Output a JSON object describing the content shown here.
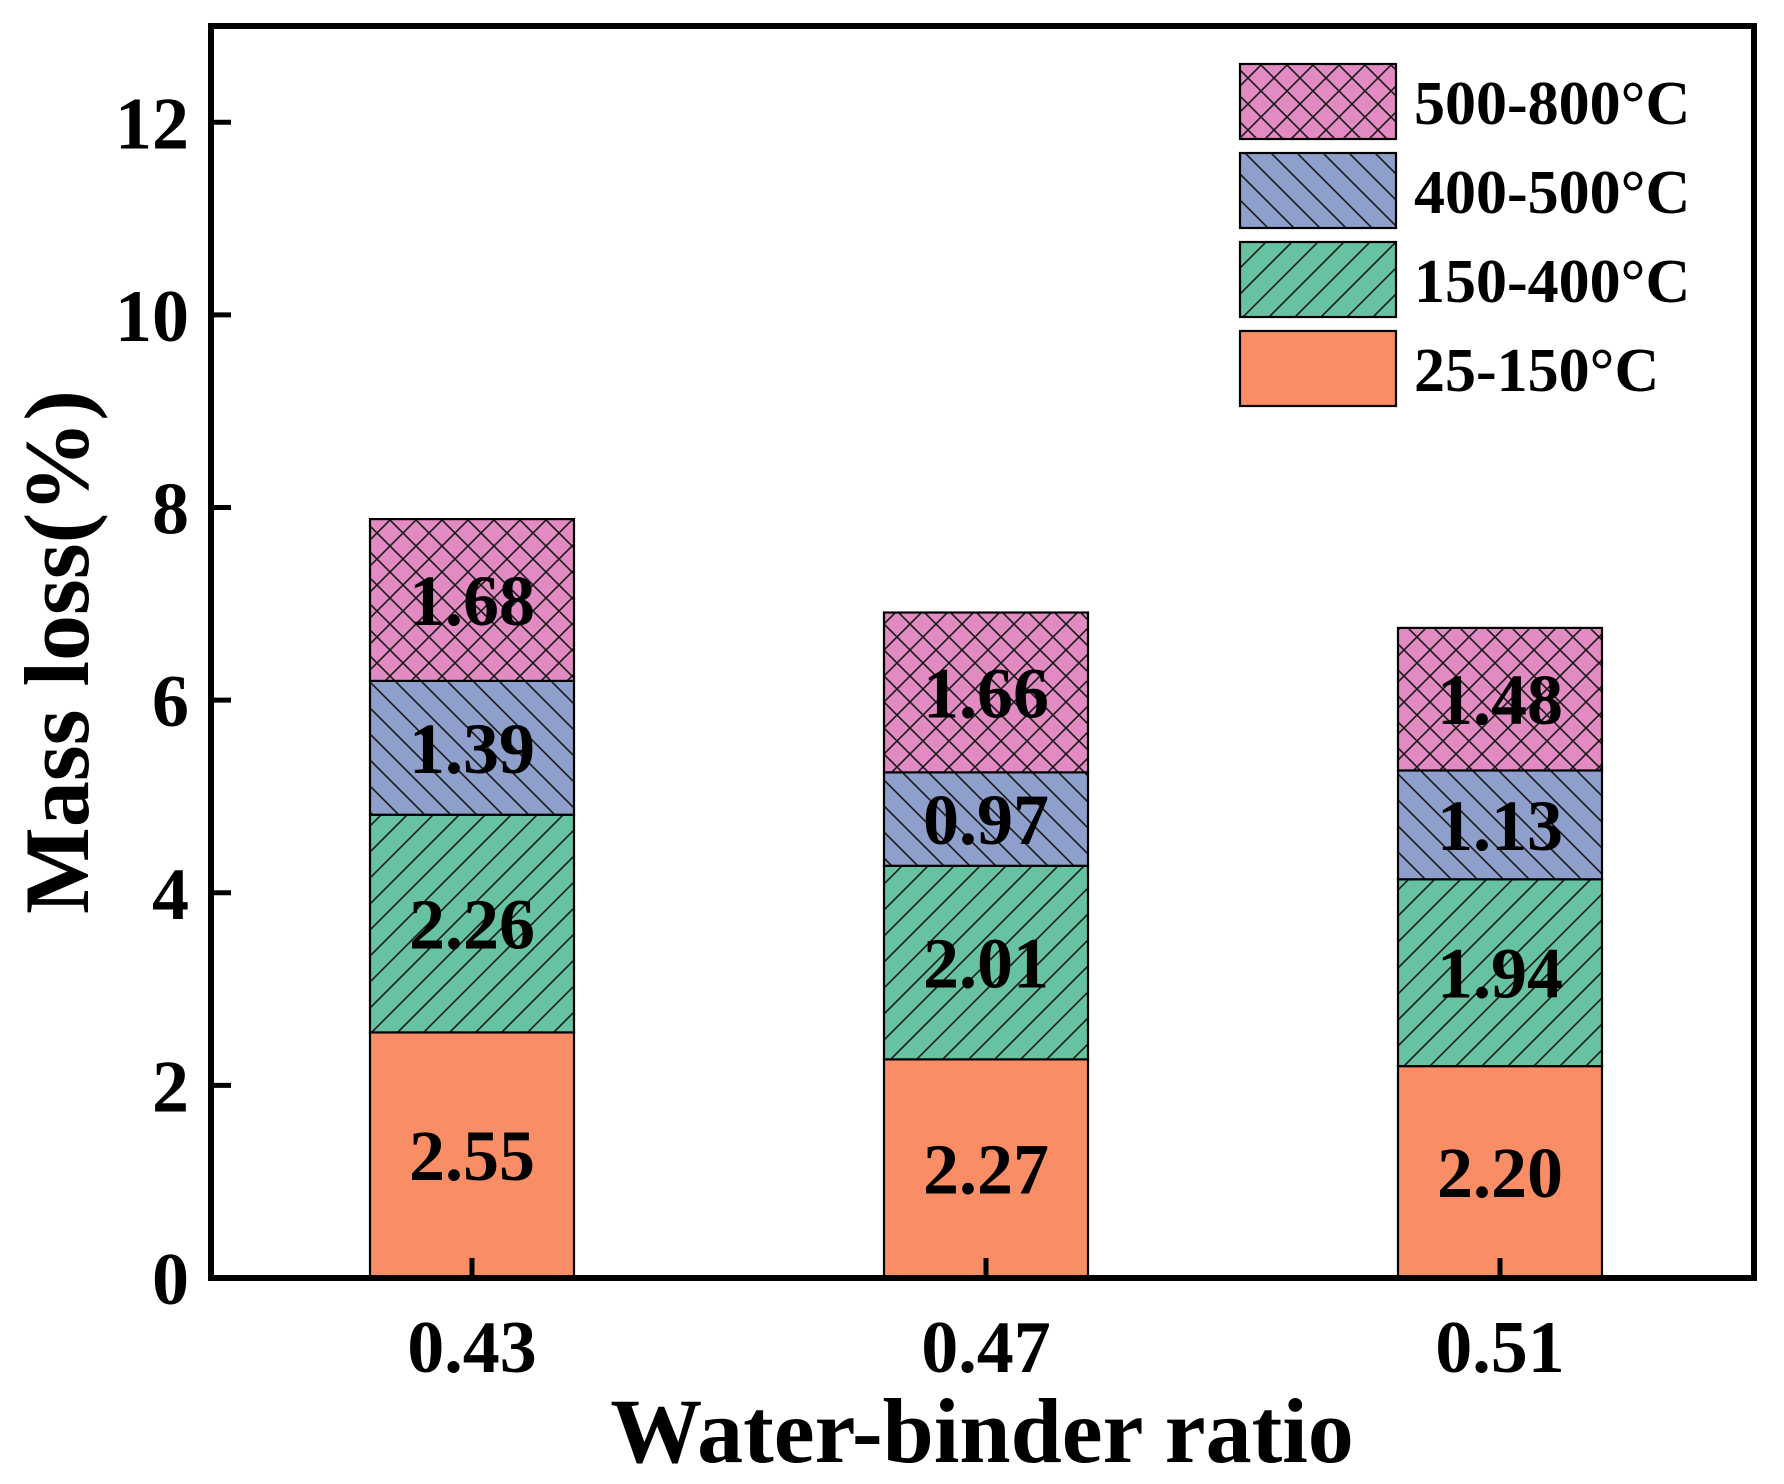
{
  "chart_data": {
    "type": "bar",
    "stacked": true,
    "title": "",
    "xlabel": "Water-binder ratio",
    "ylabel": "Mass loss(%)",
    "ylim": [
      0,
      13
    ],
    "yticks": [
      0,
      2,
      4,
      6,
      8,
      10,
      12
    ],
    "categories": [
      "0.43",
      "0.47",
      "0.51"
    ],
    "legend_position": "top-right",
    "series": [
      {
        "name": "25-150°C",
        "values": [
          2.55,
          2.27,
          2.2
        ],
        "labels": [
          "2.55",
          "2.27",
          "2.20"
        ],
        "color": "#F98E66",
        "pattern": "none"
      },
      {
        "name": "150-400°C",
        "values": [
          2.26,
          2.01,
          1.94
        ],
        "labels": [
          "2.26",
          "2.01",
          "1.94"
        ],
        "color": "#66C2A0",
        "pattern": "forward-diagonal"
      },
      {
        "name": "400-500°C",
        "values": [
          1.39,
          0.97,
          1.13
        ],
        "labels": [
          "1.39",
          "0.97",
          "1.13"
        ],
        "color": "#8E9FCB",
        "pattern": "back-diagonal"
      },
      {
        "name": "500-800°C",
        "values": [
          1.68,
          1.66,
          1.48
        ],
        "labels": [
          "1.68",
          "1.66",
          "1.48"
        ],
        "color": "#E28AC2",
        "pattern": "crosshatch"
      }
    ]
  }
}
